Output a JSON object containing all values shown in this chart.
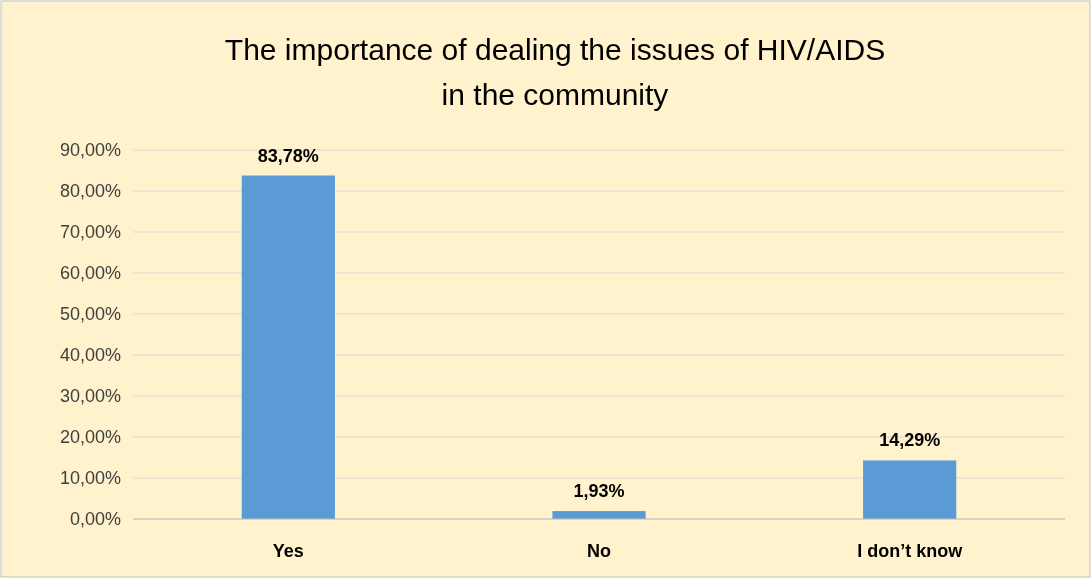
{
  "chart_data": {
    "type": "bar",
    "title": "The importance of dealing the issues of HIV/AIDS\nin the community",
    "categories": [
      "Yes",
      "No",
      "I don’t know"
    ],
    "values": [
      83.78,
      1.93,
      14.29
    ],
    "color": "#5b9bd5",
    "value_labels": [
      "83,78%",
      "1,93%",
      "14,29%"
    ],
    "ylim": [
      0,
      90
    ],
    "yticks": [
      {
        "value": 0,
        "label": "0,00%"
      },
      {
        "value": 10,
        "label": "10,00%"
      },
      {
        "value": 20,
        "label": "20,00%"
      },
      {
        "value": 30,
        "label": "30,00%"
      },
      {
        "value": 40,
        "label": "40,00%"
      },
      {
        "value": 50,
        "label": "50,00%"
      },
      {
        "value": 60,
        "label": "60,00%"
      },
      {
        "value": 70,
        "label": "70,00%"
      },
      {
        "value": 80,
        "label": "80,00%"
      },
      {
        "value": 90,
        "label": "90,00%"
      }
    ],
    "grid": "y"
  }
}
